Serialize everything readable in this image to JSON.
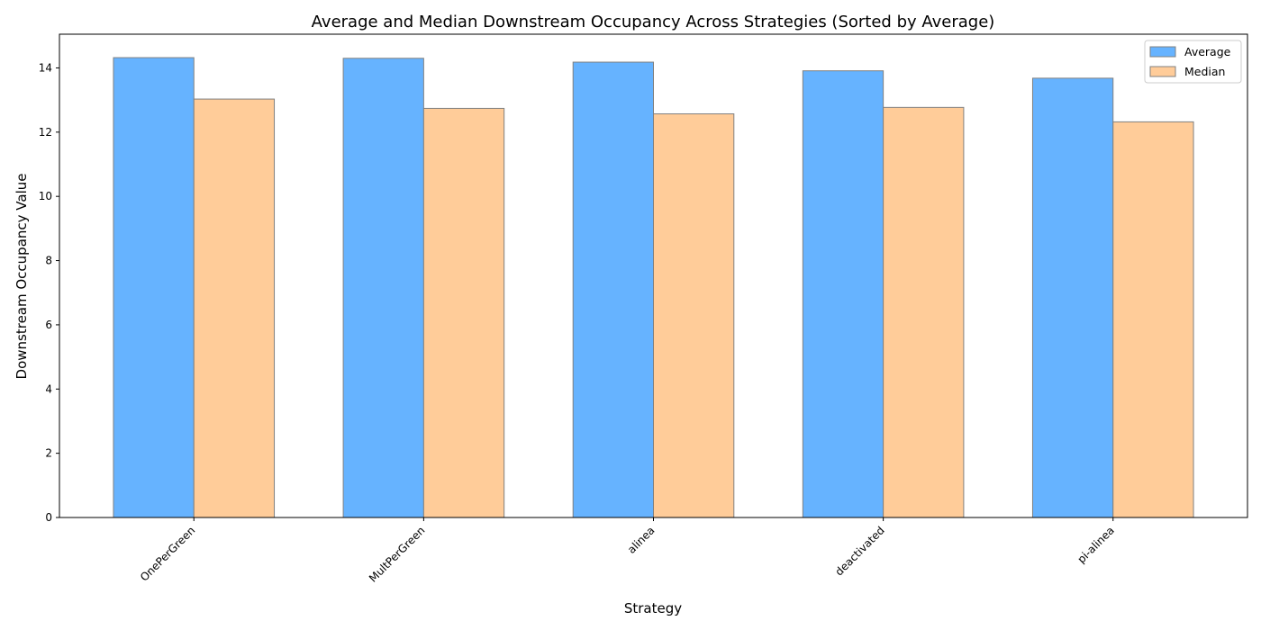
{
  "chart_data": {
    "type": "bar",
    "title": "Average and Median Downstream Occupancy Across Strategies (Sorted by Average)",
    "xlabel": "Strategy",
    "ylabel": "Downstream Occupancy Value",
    "categories": [
      "OnePerGreen",
      "MultPerGreen",
      "alinea",
      "deactivated",
      "pi-alinea"
    ],
    "series": [
      {
        "name": "Average",
        "values": [
          14.32,
          14.3,
          14.18,
          13.91,
          13.68
        ],
        "color": "#66b3ff"
      },
      {
        "name": "Median",
        "values": [
          13.03,
          12.74,
          12.57,
          12.77,
          12.32
        ],
        "color": "#ffcc99"
      }
    ],
    "ylim": [
      0,
      15.05
    ],
    "yticks": [
      0,
      2,
      4,
      6,
      8,
      10,
      12,
      14
    ],
    "grid": false,
    "legend_position": "top-right"
  }
}
